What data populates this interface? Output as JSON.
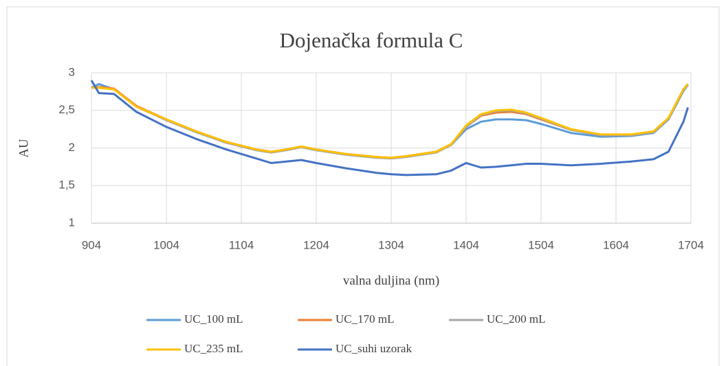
{
  "chart_data": {
    "type": "line",
    "title": "Dojenačka formula C",
    "x_label": "valna duljina (nm)",
    "y_label": "AU",
    "x": [
      904,
      914,
      934,
      964,
      1004,
      1044,
      1084,
      1124,
      1144,
      1164,
      1184,
      1204,
      1244,
      1284,
      1304,
      1324,
      1364,
      1384,
      1404,
      1424,
      1444,
      1464,
      1484,
      1504,
      1544,
      1584,
      1624,
      1654,
      1674,
      1694,
      1700
    ],
    "series": [
      {
        "name": "UC_100 mL",
        "color": "#5b9bd5",
        "values": [
          2.8,
          2.85,
          2.78,
          2.56,
          2.37,
          2.21,
          2.07,
          1.98,
          1.95,
          1.98,
          2.02,
          1.98,
          1.92,
          1.88,
          1.87,
          1.89,
          1.95,
          2.04,
          2.25,
          2.35,
          2.38,
          2.38,
          2.37,
          2.32,
          2.2,
          2.15,
          2.16,
          2.2,
          2.38,
          2.76,
          2.84
        ]
      },
      {
        "name": "UC_170 mL",
        "color": "#ed7d31",
        "values": [
          2.8,
          2.81,
          2.79,
          2.56,
          2.38,
          2.22,
          2.08,
          1.98,
          1.95,
          1.98,
          2.02,
          1.98,
          1.92,
          1.88,
          1.87,
          1.89,
          1.95,
          2.05,
          2.28,
          2.43,
          2.47,
          2.48,
          2.45,
          2.38,
          2.24,
          2.17,
          2.17,
          2.21,
          2.39,
          2.78,
          2.85
        ]
      },
      {
        "name": "UC_200 mL",
        "color": "#a5a5a5",
        "values": [
          2.8,
          2.8,
          2.78,
          2.55,
          2.37,
          2.21,
          2.07,
          1.97,
          1.94,
          1.97,
          2.01,
          1.97,
          1.91,
          1.87,
          1.86,
          1.88,
          1.94,
          2.04,
          2.28,
          2.44,
          2.49,
          2.5,
          2.46,
          2.39,
          2.24,
          2.17,
          2.17,
          2.21,
          2.39,
          2.78,
          2.85
        ]
      },
      {
        "name": "UC_235 mL",
        "color": "#ffc000",
        "values": [
          2.8,
          2.8,
          2.78,
          2.55,
          2.38,
          2.22,
          2.08,
          1.98,
          1.95,
          1.98,
          2.02,
          1.98,
          1.92,
          1.88,
          1.87,
          1.89,
          1.95,
          2.05,
          2.3,
          2.45,
          2.5,
          2.51,
          2.47,
          2.4,
          2.25,
          2.18,
          2.18,
          2.22,
          2.4,
          2.78,
          2.85
        ]
      },
      {
        "name": "UC_suhi uzorak",
        "color": "#4472c4",
        "values": [
          2.9,
          2.73,
          2.72,
          2.48,
          2.28,
          2.12,
          1.98,
          1.86,
          1.8,
          1.82,
          1.84,
          1.8,
          1.73,
          1.67,
          1.65,
          1.64,
          1.65,
          1.7,
          1.8,
          1.74,
          1.75,
          1.77,
          1.79,
          1.79,
          1.77,
          1.79,
          1.82,
          1.85,
          1.95,
          2.35,
          2.54
        ]
      }
    ],
    "xlim": [
      904,
      1704
    ],
    "xticks": [
      904,
      1004,
      1104,
      1204,
      1304,
      1404,
      1504,
      1604,
      1704
    ],
    "ylim": [
      1,
      3
    ],
    "yticks": [
      1,
      {
        "value": 1.5,
        "label": "1,5"
      },
      2,
      {
        "value": 2.5,
        "label": "2,5"
      },
      3
    ],
    "grid": true
  }
}
